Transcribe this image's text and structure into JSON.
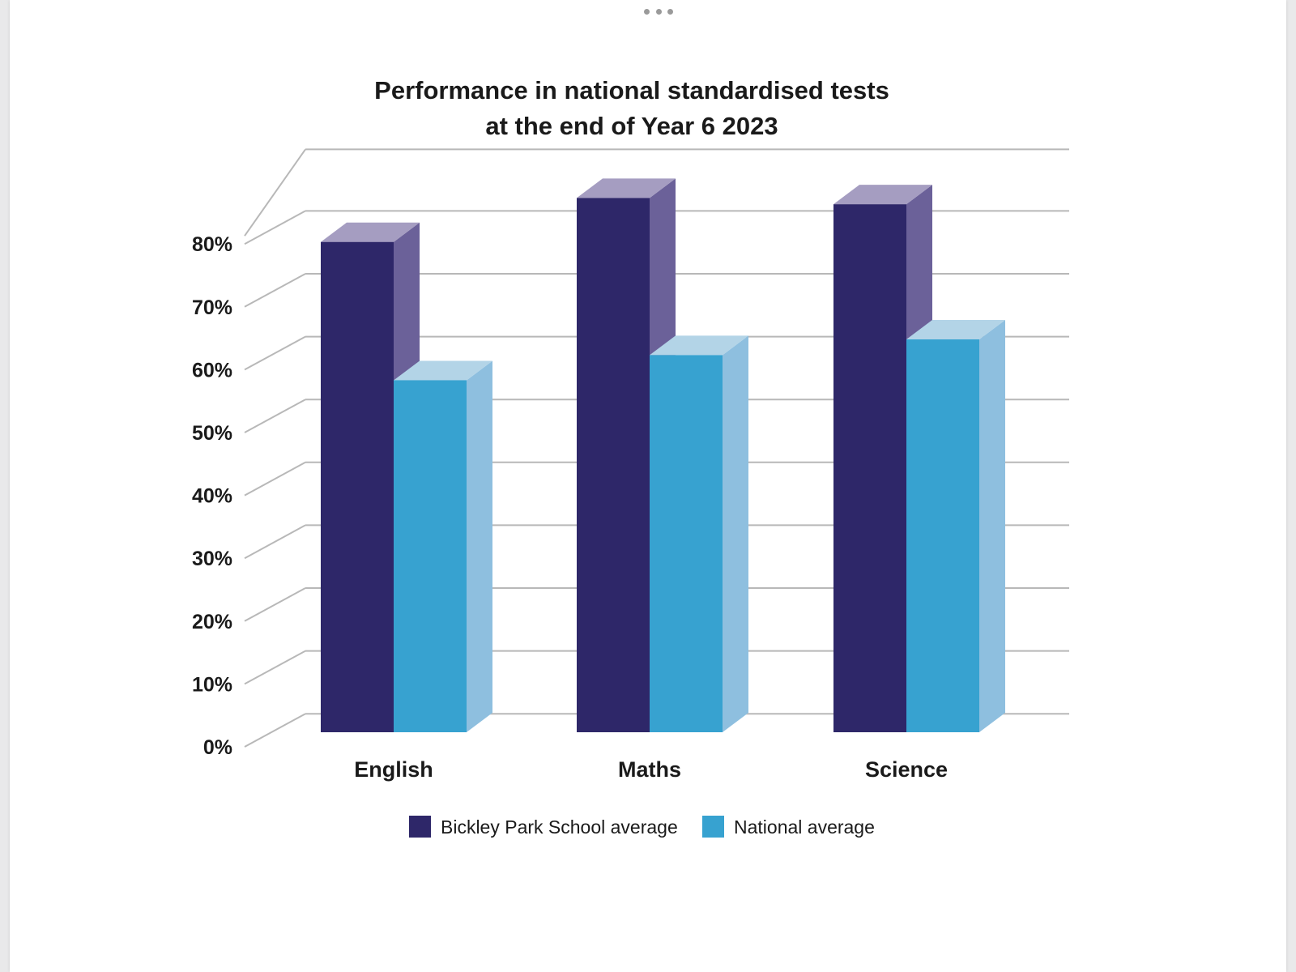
{
  "window": {
    "menu_icon": "more-dots-icon"
  },
  "chart_data": {
    "type": "bar",
    "title": "Performance in national standardised tests",
    "subtitle": "at the end of Year 6 2023",
    "categories": [
      "English",
      "Maths",
      "Science"
    ],
    "series": [
      {
        "name": "Bickley Park School average",
        "values": [
          78,
          85,
          84
        ],
        "color": "#2e2769",
        "side_color": "#6b6199",
        "top_color": "#a59dc1"
      },
      {
        "name": "National average",
        "values": [
          56,
          60,
          62.5
        ],
        "color": "#37a2d0",
        "side_color": "#8ebfdf",
        "top_color": "#b3d4e7"
      }
    ],
    "ylim": [
      0,
      80
    ],
    "yticks": [
      "0%",
      "10%",
      "20%",
      "30%",
      "40%",
      "50%",
      "60%",
      "70%",
      "80%"
    ],
    "xlabel": "",
    "ylabel": "",
    "grid": true,
    "legend_position": "bottom",
    "grid_color": "#b8b8b8"
  }
}
